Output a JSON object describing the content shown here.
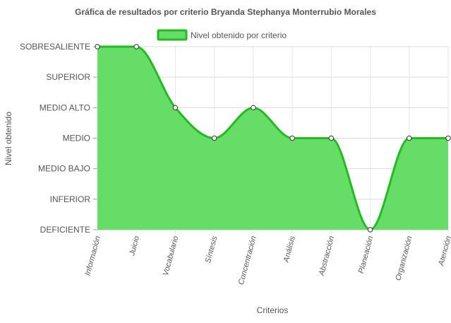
{
  "chart_data": {
    "type": "area",
    "title": "Gráfica de resultados por criterio Bryanda Stephanya Monterrubio Morales",
    "xlabel": "Criterios",
    "ylabel": "Nivel obtenido",
    "y_levels": [
      "DEFICIENTE",
      "INFERIOR",
      "MEDIO BAJO",
      "MEDIO",
      "MEDIO ALTO",
      "SUPERIOR",
      "SOBRESALIENTE"
    ],
    "ylim": [
      0,
      6
    ],
    "grid": true,
    "legend_position": "top-center",
    "categories": [
      "Información",
      "Juicio",
      "Vocabulario",
      "Síntesis",
      "Concentración",
      "Análisis",
      "Abstracción",
      "Planeación",
      "Organización",
      "Atención"
    ],
    "series": [
      {
        "name": "Nivel obtenido por criterio",
        "values": [
          6,
          6,
          4,
          3,
          4,
          3,
          3,
          0,
          3,
          3
        ],
        "value_labels": [
          "SOBRESALIENTE",
          "SOBRESALIENTE",
          "MEDIO ALTO",
          "MEDIO",
          "MEDIO ALTO",
          "MEDIO",
          "MEDIO",
          "DEFICIENTE",
          "MEDIO",
          "MEDIO"
        ],
        "fill_color": "#66dd66",
        "line_color": "#22bb22"
      }
    ]
  }
}
